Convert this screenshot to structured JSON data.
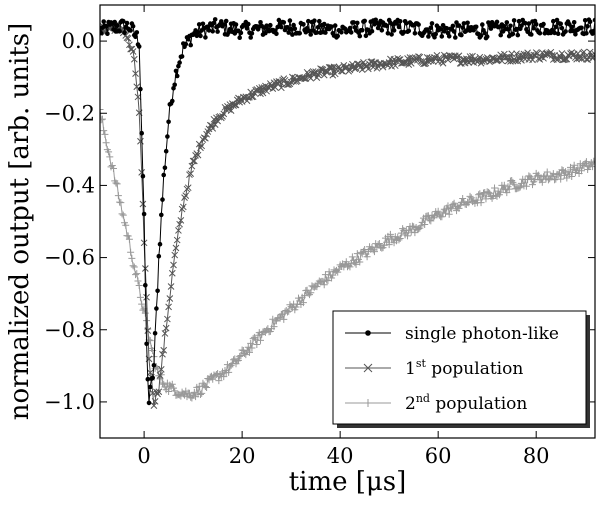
{
  "chart_data": {
    "type": "line",
    "title": "",
    "xlabel": "time [μs]",
    "ylabel": "normalized output [arb. units]",
    "xlim": [
      -9,
      92
    ],
    "ylim": [
      -1.1,
      0.1
    ],
    "grid": false,
    "legend_position": "lower-right",
    "x_ticks": [
      0,
      20,
      40,
      60,
      80
    ],
    "y_ticks": [
      0.0,
      -0.2,
      -0.4,
      -0.6,
      -0.8,
      -1.0
    ],
    "x_tick_labels": [
      "0",
      "20",
      "40",
      "60",
      "80"
    ],
    "y_tick_labels": [
      "0.0",
      "−0.2",
      "−0.4",
      "−0.6",
      "−0.8",
      "−1.0"
    ],
    "series": [
      {
        "name": "single photon-like",
        "legend_label": "single photon-like",
        "legend_sup": "",
        "legend_suffix": "",
        "marker": "dot",
        "color": "#000000",
        "x": [
          -9,
          -6,
          -3,
          -1,
          0,
          0.5,
          1,
          2,
          3,
          4,
          5,
          6,
          7,
          8,
          9,
          10,
          12,
          15,
          20,
          30,
          40,
          50,
          60,
          70,
          80,
          92
        ],
        "y": [
          0.03,
          0.04,
          0.04,
          0.0,
          -0.5,
          -0.85,
          -1.0,
          -0.9,
          -0.6,
          -0.38,
          -0.22,
          -0.12,
          -0.06,
          -0.02,
          0.0,
          0.02,
          0.03,
          0.04,
          0.03,
          0.04,
          0.03,
          0.04,
          0.03,
          0.03,
          0.04,
          0.04
        ]
      },
      {
        "name": "1st population",
        "legend_label": "1",
        "legend_sup": "st",
        "legend_suffix": " population",
        "marker": "x",
        "color": "#555555",
        "x": [
          -9,
          -6,
          -4,
          -2,
          -1,
          0,
          1,
          2,
          3,
          4,
          6,
          8,
          10,
          12,
          15,
          20,
          25,
          30,
          35,
          40,
          50,
          60,
          70,
          80,
          92
        ],
        "y": [
          0.03,
          0.04,
          0.03,
          -0.05,
          -0.2,
          -0.55,
          -0.88,
          -1.0,
          -0.96,
          -0.85,
          -0.62,
          -0.45,
          -0.34,
          -0.27,
          -0.21,
          -0.16,
          -0.13,
          -0.11,
          -0.09,
          -0.08,
          -0.06,
          -0.05,
          -0.05,
          -0.04,
          -0.04
        ]
      },
      {
        "name": "2nd population",
        "legend_label": "2",
        "legend_sup": "nd",
        "legend_suffix": " population",
        "marker": "plus",
        "color": "#999999",
        "x": [
          -9,
          -7,
          -5,
          -3,
          -1,
          0,
          1,
          2,
          3,
          5,
          7,
          9,
          11,
          13,
          15,
          18,
          20,
          25,
          30,
          35,
          40,
          45,
          50,
          55,
          60,
          65,
          70,
          75,
          80,
          85,
          92
        ],
        "y": [
          -0.2,
          -0.32,
          -0.44,
          -0.56,
          -0.69,
          -0.75,
          -0.82,
          -0.88,
          -0.93,
          -0.96,
          -0.97,
          -0.98,
          -0.97,
          -0.95,
          -0.93,
          -0.9,
          -0.87,
          -0.8,
          -0.74,
          -0.68,
          -0.63,
          -0.59,
          -0.55,
          -0.52,
          -0.48,
          -0.45,
          -0.43,
          -0.4,
          -0.38,
          -0.37,
          -0.34
        ]
      }
    ]
  }
}
